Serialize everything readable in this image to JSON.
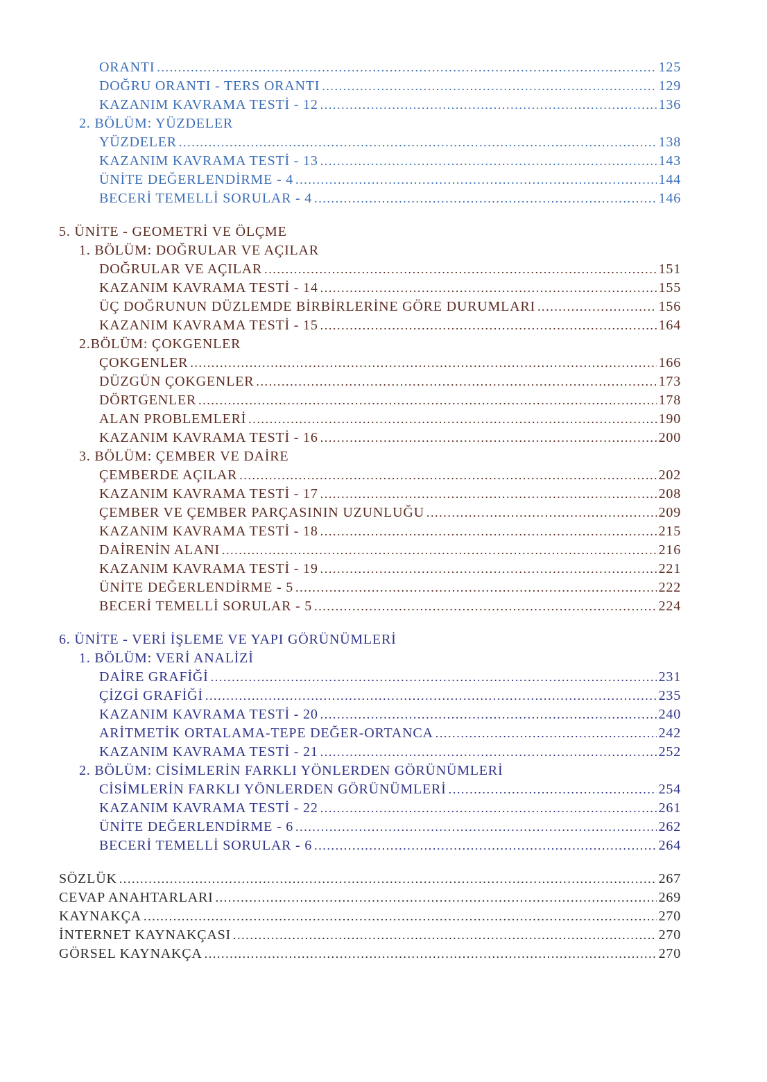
{
  "document": {
    "kind": "table-of-contents",
    "colors": {
      "unit4_blue": "#3a6db6",
      "unit5_maroon": "#5c2b21",
      "unit6_navy": "#2e3488",
      "backmatter_dark": "#2e2d2b"
    },
    "sections": [
      {
        "id": "unit-4-continuation",
        "color": "#3a6db6",
        "rows": [
          {
            "level": 2,
            "label": "ORANTI",
            "page": "125"
          },
          {
            "level": 2,
            "label": "DOĞRU ORANTI - TERS ORANTI",
            "page": "129"
          },
          {
            "level": 2,
            "label": "KAZANIM KAVRAMA TESTİ - 12",
            "page": "136"
          },
          {
            "level": 1,
            "label": "2. BÖLÜM: YÜZDELER",
            "page": null
          },
          {
            "level": 2,
            "label": "YÜZDELER",
            "page": "138"
          },
          {
            "level": 2,
            "label": "KAZANIM KAVRAMA TESTİ - 13",
            "page": "143"
          },
          {
            "level": 2,
            "label": "ÜNİTE DEĞERLENDİRME - 4",
            "page": "144"
          },
          {
            "level": 2,
            "label": "BECERİ TEMELLİ SORULAR - 4",
            "page": "146"
          }
        ]
      },
      {
        "id": "unit-5",
        "color": "#5c2b21",
        "rows": [
          {
            "level": 0,
            "label": "5. ÜNİTE - GEOMETRİ VE ÖLÇME",
            "page": null
          },
          {
            "level": 1,
            "label": "1. BÖLÜM: DOĞRULAR VE AÇILAR",
            "page": null
          },
          {
            "level": 2,
            "label": "DOĞRULAR VE AÇILAR",
            "page": "151"
          },
          {
            "level": 2,
            "label": "KAZANIM KAVRAMA TESTİ - 14",
            "page": "155"
          },
          {
            "level": 2,
            "label": "ÜÇ DOĞRUNUN DÜZLEMDE BİRBİRLERİNE GÖRE DURUMLARI",
            "page": "156"
          },
          {
            "level": 2,
            "label": "KAZANIM KAVRAMA TESTİ - 15",
            "page": "164"
          },
          {
            "level": 1,
            "label": "2.BÖLÜM: ÇOKGENLER",
            "page": null
          },
          {
            "level": 2,
            "label": "ÇOKGENLER",
            "page": "166"
          },
          {
            "level": 2,
            "label": "DÜZGÜN ÇOKGENLER",
            "page": "173"
          },
          {
            "level": 2,
            "label": "DÖRTGENLER",
            "page": "178"
          },
          {
            "level": 2,
            "label": "ALAN PROBLEMLERİ",
            "page": "190"
          },
          {
            "level": 2,
            "label": "KAZANIM KAVRAMA TESTİ - 16",
            "page": "200"
          },
          {
            "level": 1,
            "label": "3. BÖLÜM: ÇEMBER VE DAİRE",
            "page": null
          },
          {
            "level": 2,
            "label": "ÇEMBERDE AÇILAR",
            "page": "202"
          },
          {
            "level": 2,
            "label": "KAZANIM KAVRAMA TESTİ - 17",
            "page": "208"
          },
          {
            "level": 2,
            "label": "ÇEMBER VE ÇEMBER PARÇASININ UZUNLUĞU",
            "page": "209"
          },
          {
            "level": 2,
            "label": "KAZANIM KAVRAMA TESTİ - 18",
            "page": "215"
          },
          {
            "level": 2,
            "label": "DAİRENİN ALANI",
            "page": "216"
          },
          {
            "level": 2,
            "label": "KAZANIM KAVRAMA TESTİ - 19",
            "page": "221"
          },
          {
            "level": 2,
            "label": "ÜNİTE DEĞERLENDİRME - 5",
            "page": "222"
          },
          {
            "level": 2,
            "label": "BECERİ TEMELLİ SORULAR - 5",
            "page": "224"
          }
        ]
      },
      {
        "id": "unit-6",
        "color": "#2e3488",
        "rows": [
          {
            "level": 0,
            "label": "6. ÜNİTE - VERİ İŞLEME VE YAPI GÖRÜNÜMLERİ",
            "page": null
          },
          {
            "level": 1,
            "label": "1. BÖLÜM: VERİ ANALİZİ",
            "page": null
          },
          {
            "level": 2,
            "label": "DAİRE GRAFİĞİ",
            "page": "231"
          },
          {
            "level": 2,
            "label": "ÇİZGİ GRAFİĞİ",
            "page": "235"
          },
          {
            "level": 2,
            "label": "KAZANIM KAVRAMA TESTİ - 20",
            "page": "240"
          },
          {
            "level": 2,
            "label": "ARİTMETİK ORTALAMA-TEPE DEĞER-ORTANCA",
            "page": "242"
          },
          {
            "level": 2,
            "label": "KAZANIM KAVRAMA TESTİ - 21",
            "page": "252"
          },
          {
            "level": 1,
            "label": "2. BÖLÜM: CİSİMLERİN FARKLI YÖNLERDEN GÖRÜNÜMLERİ",
            "page": null
          },
          {
            "level": 2,
            "label": "CİSİMLERİN FARKLI YÖNLERDEN GÖRÜNÜMLERİ",
            "page": "254"
          },
          {
            "level": 2,
            "label": "KAZANIM KAVRAMA TESTİ - 22",
            "page": "261"
          },
          {
            "level": 2,
            "label": "ÜNİTE DEĞERLENDİRME - 6",
            "page": "262"
          },
          {
            "level": 2,
            "label": "BECERİ TEMELLİ SORULAR - 6",
            "page": "264"
          }
        ]
      },
      {
        "id": "back-matter",
        "color": "#2e2d2b",
        "rows": [
          {
            "level": 0,
            "label": "SÖZLÜK",
            "page": "267"
          },
          {
            "level": 0,
            "label": "CEVAP ANAHTARLARI",
            "page": "269"
          },
          {
            "level": 0,
            "label": "KAYNAKÇA",
            "page": "270"
          },
          {
            "level": 0,
            "label": "İNTERNET KAYNAKÇASI",
            "page": "270"
          },
          {
            "level": 0,
            "label": "GÖRSEL KAYNAKÇA",
            "page": "270"
          }
        ]
      }
    ]
  }
}
